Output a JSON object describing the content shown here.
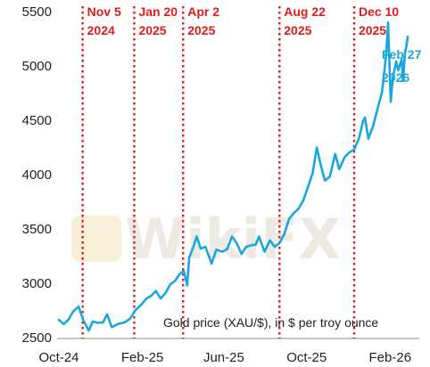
{
  "chart_data": {
    "type": "line",
    "title": "",
    "xlabel": "",
    "ylabel": "",
    "annotation": "Gold price (XAU/$), in $ per troy ounce",
    "watermark": "WikiFX",
    "ylim": [
      2500,
      5500
    ],
    "y_ticks": [
      2500,
      3000,
      3500,
      4000,
      4500,
      5000,
      5500
    ],
    "x_ticks": [
      {
        "label": "Oct-24",
        "date": "2024-10-01"
      },
      {
        "label": "Feb-25",
        "date": "2025-02-01"
      },
      {
        "label": "Jun-25",
        "date": "2025-06-01"
      },
      {
        "label": "Oct-25",
        "date": "2025-10-01"
      },
      {
        "label": "Feb-26",
        "date": "2026-02-01"
      }
    ],
    "xlim": [
      "2024-10-01",
      "2026-03-16"
    ],
    "grid": false,
    "colors": {
      "line": "#1aa7dd",
      "events": "#e01b1b",
      "end_label": "#1aa7dd"
    },
    "events": [
      {
        "date": "2024-11-05",
        "line1": "Nov 5",
        "line2": "2024"
      },
      {
        "date": "2025-01-20",
        "line1": "Jan 20",
        "line2": "2025"
      },
      {
        "date": "2025-04-02",
        "line1": "Apr 2",
        "line2": "2025"
      },
      {
        "date": "2025-08-22",
        "line1": "Aug 22",
        "line2": "2025"
      },
      {
        "date": "2025-12-10",
        "line1": "Dec 10",
        "line2": "2025"
      }
    ],
    "end_label": {
      "line1": "Feb 27",
      "line2": "2026"
    },
    "series": [
      {
        "values": [
          [
            "2024-10-01",
            2665
          ],
          [
            "2024-10-08",
            2625
          ],
          [
            "2024-10-15",
            2665
          ],
          [
            "2024-10-22",
            2740
          ],
          [
            "2024-10-30",
            2785
          ],
          [
            "2024-11-06",
            2660
          ],
          [
            "2024-11-14",
            2565
          ],
          [
            "2024-11-20",
            2650
          ],
          [
            "2024-11-27",
            2635
          ],
          [
            "2024-12-05",
            2640
          ],
          [
            "2024-12-11",
            2715
          ],
          [
            "2024-12-18",
            2595
          ],
          [
            "2024-12-27",
            2625
          ],
          [
            "2025-01-06",
            2640
          ],
          [
            "2025-01-14",
            2675
          ],
          [
            "2025-01-22",
            2755
          ],
          [
            "2025-01-30",
            2800
          ],
          [
            "2025-02-07",
            2860
          ],
          [
            "2025-02-14",
            2885
          ],
          [
            "2025-02-21",
            2930
          ],
          [
            "2025-02-28",
            2860
          ],
          [
            "2025-03-07",
            2910
          ],
          [
            "2025-03-14",
            2990
          ],
          [
            "2025-03-21",
            3020
          ],
          [
            "2025-03-28",
            3085
          ],
          [
            "2025-04-03",
            3115
          ],
          [
            "2025-04-08",
            2980
          ],
          [
            "2025-04-11",
            3235
          ],
          [
            "2025-04-17",
            3330
          ],
          [
            "2025-04-22",
            3430
          ],
          [
            "2025-04-28",
            3320
          ],
          [
            "2025-05-05",
            3335
          ],
          [
            "2025-05-14",
            3180
          ],
          [
            "2025-05-21",
            3310
          ],
          [
            "2025-05-30",
            3290
          ],
          [
            "2025-06-06",
            3315
          ],
          [
            "2025-06-13",
            3430
          ],
          [
            "2025-06-20",
            3370
          ],
          [
            "2025-06-27",
            3270
          ],
          [
            "2025-07-04",
            3335
          ],
          [
            "2025-07-11",
            3350
          ],
          [
            "2025-07-18",
            3355
          ],
          [
            "2025-07-23",
            3430
          ],
          [
            "2025-07-31",
            3290
          ],
          [
            "2025-08-08",
            3395
          ],
          [
            "2025-08-15",
            3335
          ],
          [
            "2025-08-22",
            3370
          ],
          [
            "2025-08-29",
            3450
          ],
          [
            "2025-09-05",
            3590
          ],
          [
            "2025-09-12",
            3645
          ],
          [
            "2025-09-19",
            3685
          ],
          [
            "2025-09-26",
            3760
          ],
          [
            "2025-10-03",
            3885
          ],
          [
            "2025-10-10",
            4015
          ],
          [
            "2025-10-16",
            4250
          ],
          [
            "2025-10-21",
            4110
          ],
          [
            "2025-10-28",
            3945
          ],
          [
            "2025-11-04",
            3980
          ],
          [
            "2025-11-12",
            4190
          ],
          [
            "2025-11-18",
            4050
          ],
          [
            "2025-11-26",
            4160
          ],
          [
            "2025-12-03",
            4205
          ],
          [
            "2025-12-10",
            4230
          ],
          [
            "2025-12-17",
            4330
          ],
          [
            "2025-12-23",
            4490
          ],
          [
            "2025-12-26",
            4525
          ],
          [
            "2025-12-31",
            4330
          ],
          [
            "2026-01-07",
            4450
          ],
          [
            "2026-01-14",
            4620
          ],
          [
            "2026-01-20",
            4760
          ],
          [
            "2026-01-26",
            5090
          ],
          [
            "2026-01-29",
            5400
          ],
          [
            "2026-02-02",
            4670
          ],
          [
            "2026-02-05",
            4890
          ],
          [
            "2026-02-10",
            5040
          ],
          [
            "2026-02-13",
            4960
          ],
          [
            "2026-02-18",
            5060
          ],
          [
            "2026-02-20",
            4860
          ],
          [
            "2026-02-23",
            5120
          ],
          [
            "2026-02-25",
            5180
          ],
          [
            "2026-02-27",
            5270
          ]
        ]
      }
    ]
  }
}
